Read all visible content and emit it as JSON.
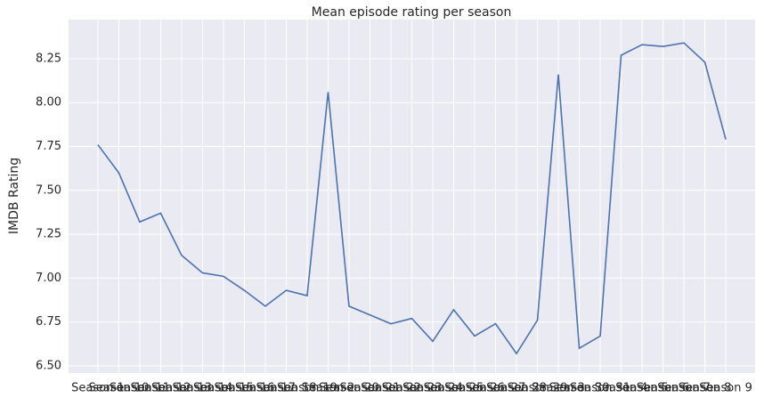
{
  "chart_data": {
    "type": "line",
    "title": "Mean episode rating per season",
    "ylabel": "IMDB Rating",
    "categories": [
      "Season 1",
      "Season 10",
      "Season 11",
      "Season 12",
      "Season 13",
      "Season 14",
      "Season 15",
      "Season 16",
      "Season 17",
      "Season 18",
      "Season 19",
      "Season 2",
      "Season 20",
      "Season 21",
      "Season 22",
      "Season 23",
      "Season 24",
      "Season 25",
      "Season 26",
      "Season 27",
      "Season 28",
      "Season 29",
      "Season 3",
      "Season 30",
      "Season 31",
      "Season 4",
      "Season 5",
      "Season 6",
      "Season 7",
      "Season 8",
      "Season 9"
    ],
    "series": [
      {
        "name": "IMDB Rating",
        "color": "#4c72b0",
        "values": [
          7.76,
          7.6,
          7.32,
          7.37,
          7.13,
          7.03,
          7.01,
          6.93,
          6.84,
          6.93,
          6.9,
          8.06,
          6.84,
          6.79,
          6.74,
          6.77,
          6.64,
          6.82,
          6.67,
          6.74,
          6.57,
          6.76,
          8.16,
          6.6,
          6.67,
          8.27,
          8.33,
          8.32,
          8.34,
          8.23,
          7.79
        ]
      }
    ],
    "ylim": [
      6.459,
      8.473
    ],
    "yticks": [
      {
        "value": 6.5,
        "label": "6.50"
      },
      {
        "value": 6.75,
        "label": "6.75"
      },
      {
        "value": 7.0,
        "label": "7.00"
      },
      {
        "value": 7.25,
        "label": "7.25"
      },
      {
        "value": 7.5,
        "label": "7.50"
      },
      {
        "value": 7.75,
        "label": "7.75"
      },
      {
        "value": 8.0,
        "label": "8.00"
      },
      {
        "value": 8.25,
        "label": "8.25"
      }
    ],
    "grid": true
  }
}
